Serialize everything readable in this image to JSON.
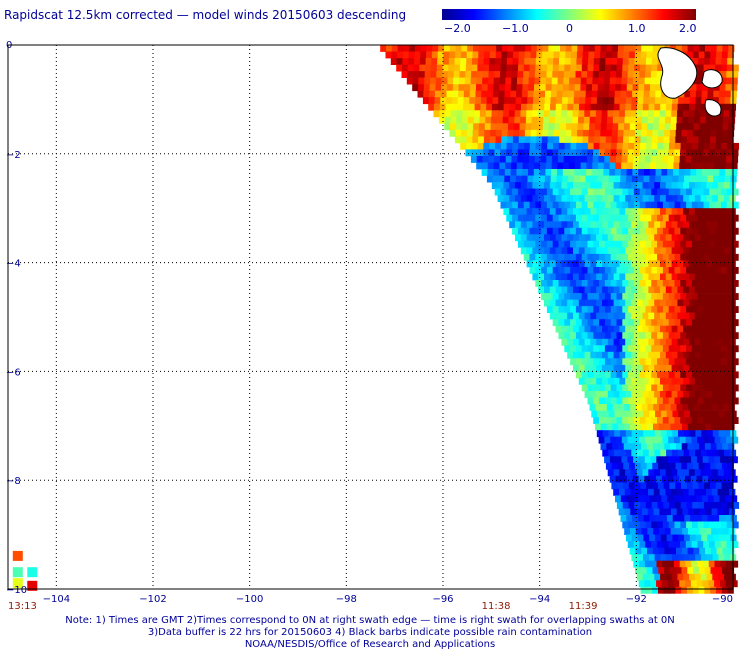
{
  "title": "Rapidscat 12.5km corrected — model winds 20150603 descending",
  "colorbar": {
    "ticks": [
      "−2.0",
      "−1.0",
      "0",
      "1.0",
      "2.0"
    ],
    "range": [
      -2.0,
      2.0
    ]
  },
  "chart_data": {
    "type": "heatmap",
    "title": "Rapidscat 12.5km corrected — model winds 20150603 descending",
    "xlabel": "",
    "ylabel": "",
    "xlim": [
      -105,
      -90
    ],
    "ylim": [
      -10,
      0
    ],
    "grid": true,
    "colormap": "jet",
    "value_range": [
      -2.0,
      2.0
    ],
    "x_ticks": [
      "−104",
      "−102",
      "−100",
      "−98",
      "−96",
      "−94",
      "−92",
      "−90"
    ],
    "x_tick_values": [
      -104,
      -102,
      -100,
      -98,
      -96,
      -94,
      -92,
      -90
    ],
    "y_ticks": [
      "0",
      "−2",
      "−4",
      "−6",
      "−8",
      "−10"
    ],
    "y_tick_values": [
      0,
      -2,
      -4,
      -6,
      -8,
      -10
    ],
    "swath_west_edge": [
      [
        -97.3,
        0
      ],
      [
        -95.0,
        -2.5
      ],
      [
        -93.0,
        -6.5
      ],
      [
        -91.9,
        -10
      ]
    ],
    "regions": [
      {
        "name": "north strip",
        "lon": [
          -97.5,
          -90
        ],
        "lat": [
          -2.0,
          0
        ],
        "value": 1.3
      },
      {
        "name": "eastern maximum",
        "lon": [
          -91.8,
          -90
        ],
        "lat": [
          -6.5,
          -3.5
        ],
        "value": 2.0
      },
      {
        "name": "northeast maximum",
        "lon": [
          -91.0,
          -90
        ],
        "lat": [
          -2.0,
          -1.0
        ],
        "value": 2.0
      },
      {
        "name": "central minimum",
        "lon": [
          -95.5,
          -93.0
        ],
        "lat": [
          -3.5,
          -2.0
        ],
        "value": -1.6
      },
      {
        "name": "southeast minimum",
        "lon": [
          -91.5,
          -90
        ],
        "lat": [
          -8.5,
          -7.0
        ],
        "value": -1.5
      },
      {
        "name": "south strip",
        "lon": [
          -91.5,
          -90
        ],
        "lat": [
          -10,
          -9.5
        ],
        "value": 1.5
      }
    ],
    "time_labels": [
      {
        "text": "13:13",
        "lon": -105.0
      },
      {
        "text": "11:38",
        "lon": -95.2
      },
      {
        "text": "11:39",
        "lon": -93.4
      }
    ]
  },
  "notes": [
    "Note: 1) Times are GMT 2)Times correspond to 0N at right swath edge — time is right swath for overlapping swaths at 0N",
    "3)Data buffer is 22 hrs for 20150603 4) Black barbs indicate possible rain contamination",
    "NOAA/NESDIS/Office of Research and Applications"
  ]
}
